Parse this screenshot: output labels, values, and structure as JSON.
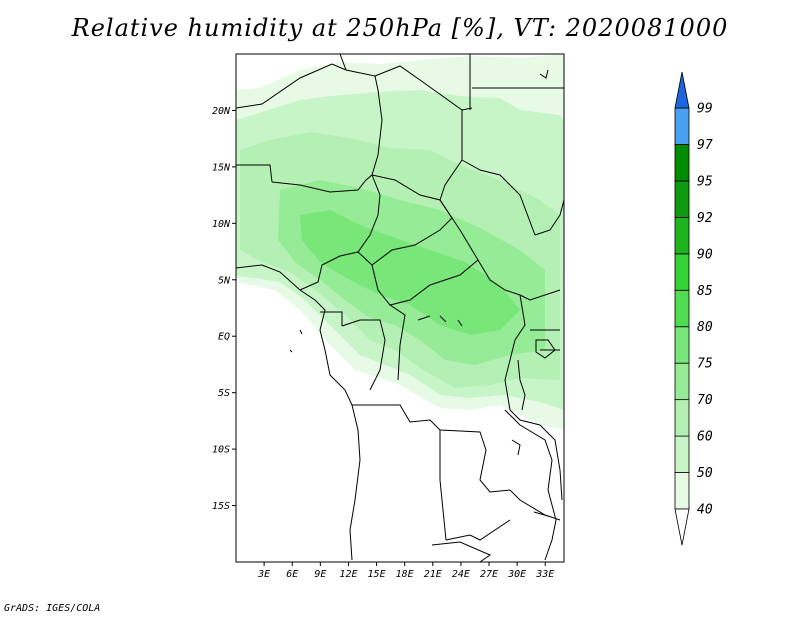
{
  "title": "Relative humidity at 250hPa [%], VT: 2020081000",
  "credit": "GrADS: IGES/COLA",
  "map": {
    "projection": "lat-lon",
    "lon_range": [
      0,
      35
    ],
    "lat_range": [
      -20,
      25
    ],
    "lat_ticks": [
      {
        "value": 20,
        "label": "20N"
      },
      {
        "value": 15,
        "label": "15N"
      },
      {
        "value": 10,
        "label": "10N"
      },
      {
        "value": 5,
        "label": "5N"
      },
      {
        "value": 0,
        "label": "EQ"
      },
      {
        "value": -5,
        "label": "5S"
      },
      {
        "value": -10,
        "label": "10S"
      },
      {
        "value": -15,
        "label": "15S"
      }
    ],
    "lon_ticks": [
      {
        "value": 3,
        "label": "3E"
      },
      {
        "value": 6,
        "label": "6E"
      },
      {
        "value": 9,
        "label": "9E"
      },
      {
        "value": 12,
        "label": "12E"
      },
      {
        "value": 15,
        "label": "15E"
      },
      {
        "value": 18,
        "label": "18E"
      },
      {
        "value": 21,
        "label": "21E"
      },
      {
        "value": 24,
        "label": "24E"
      },
      {
        "value": 27,
        "label": "27E"
      },
      {
        "value": 30,
        "label": "30E"
      },
      {
        "value": 33,
        "label": "33E"
      }
    ]
  },
  "colorbar": {
    "levels": [
      {
        "label": "40",
        "color": "#e6fae6"
      },
      {
        "label": "50",
        "color": "#c8f5c8"
      },
      {
        "label": "60",
        "color": "#b4f0b4"
      },
      {
        "label": "70",
        "color": "#96eb96"
      },
      {
        "label": "75",
        "color": "#78e678"
      },
      {
        "label": "80",
        "color": "#50dc50"
      },
      {
        "label": "85",
        "color": "#37d237"
      },
      {
        "label": "90",
        "color": "#1eb41e"
      },
      {
        "label": "92",
        "color": "#0f9b0f"
      },
      {
        "label": "95",
        "color": "#008c00"
      },
      {
        "label": "97",
        "color": "#4aa0f0"
      },
      {
        "label": "99",
        "color": "#1e6ee6"
      }
    ],
    "top_color": "#1e64dc",
    "bottom_color": "#ffffff"
  }
}
